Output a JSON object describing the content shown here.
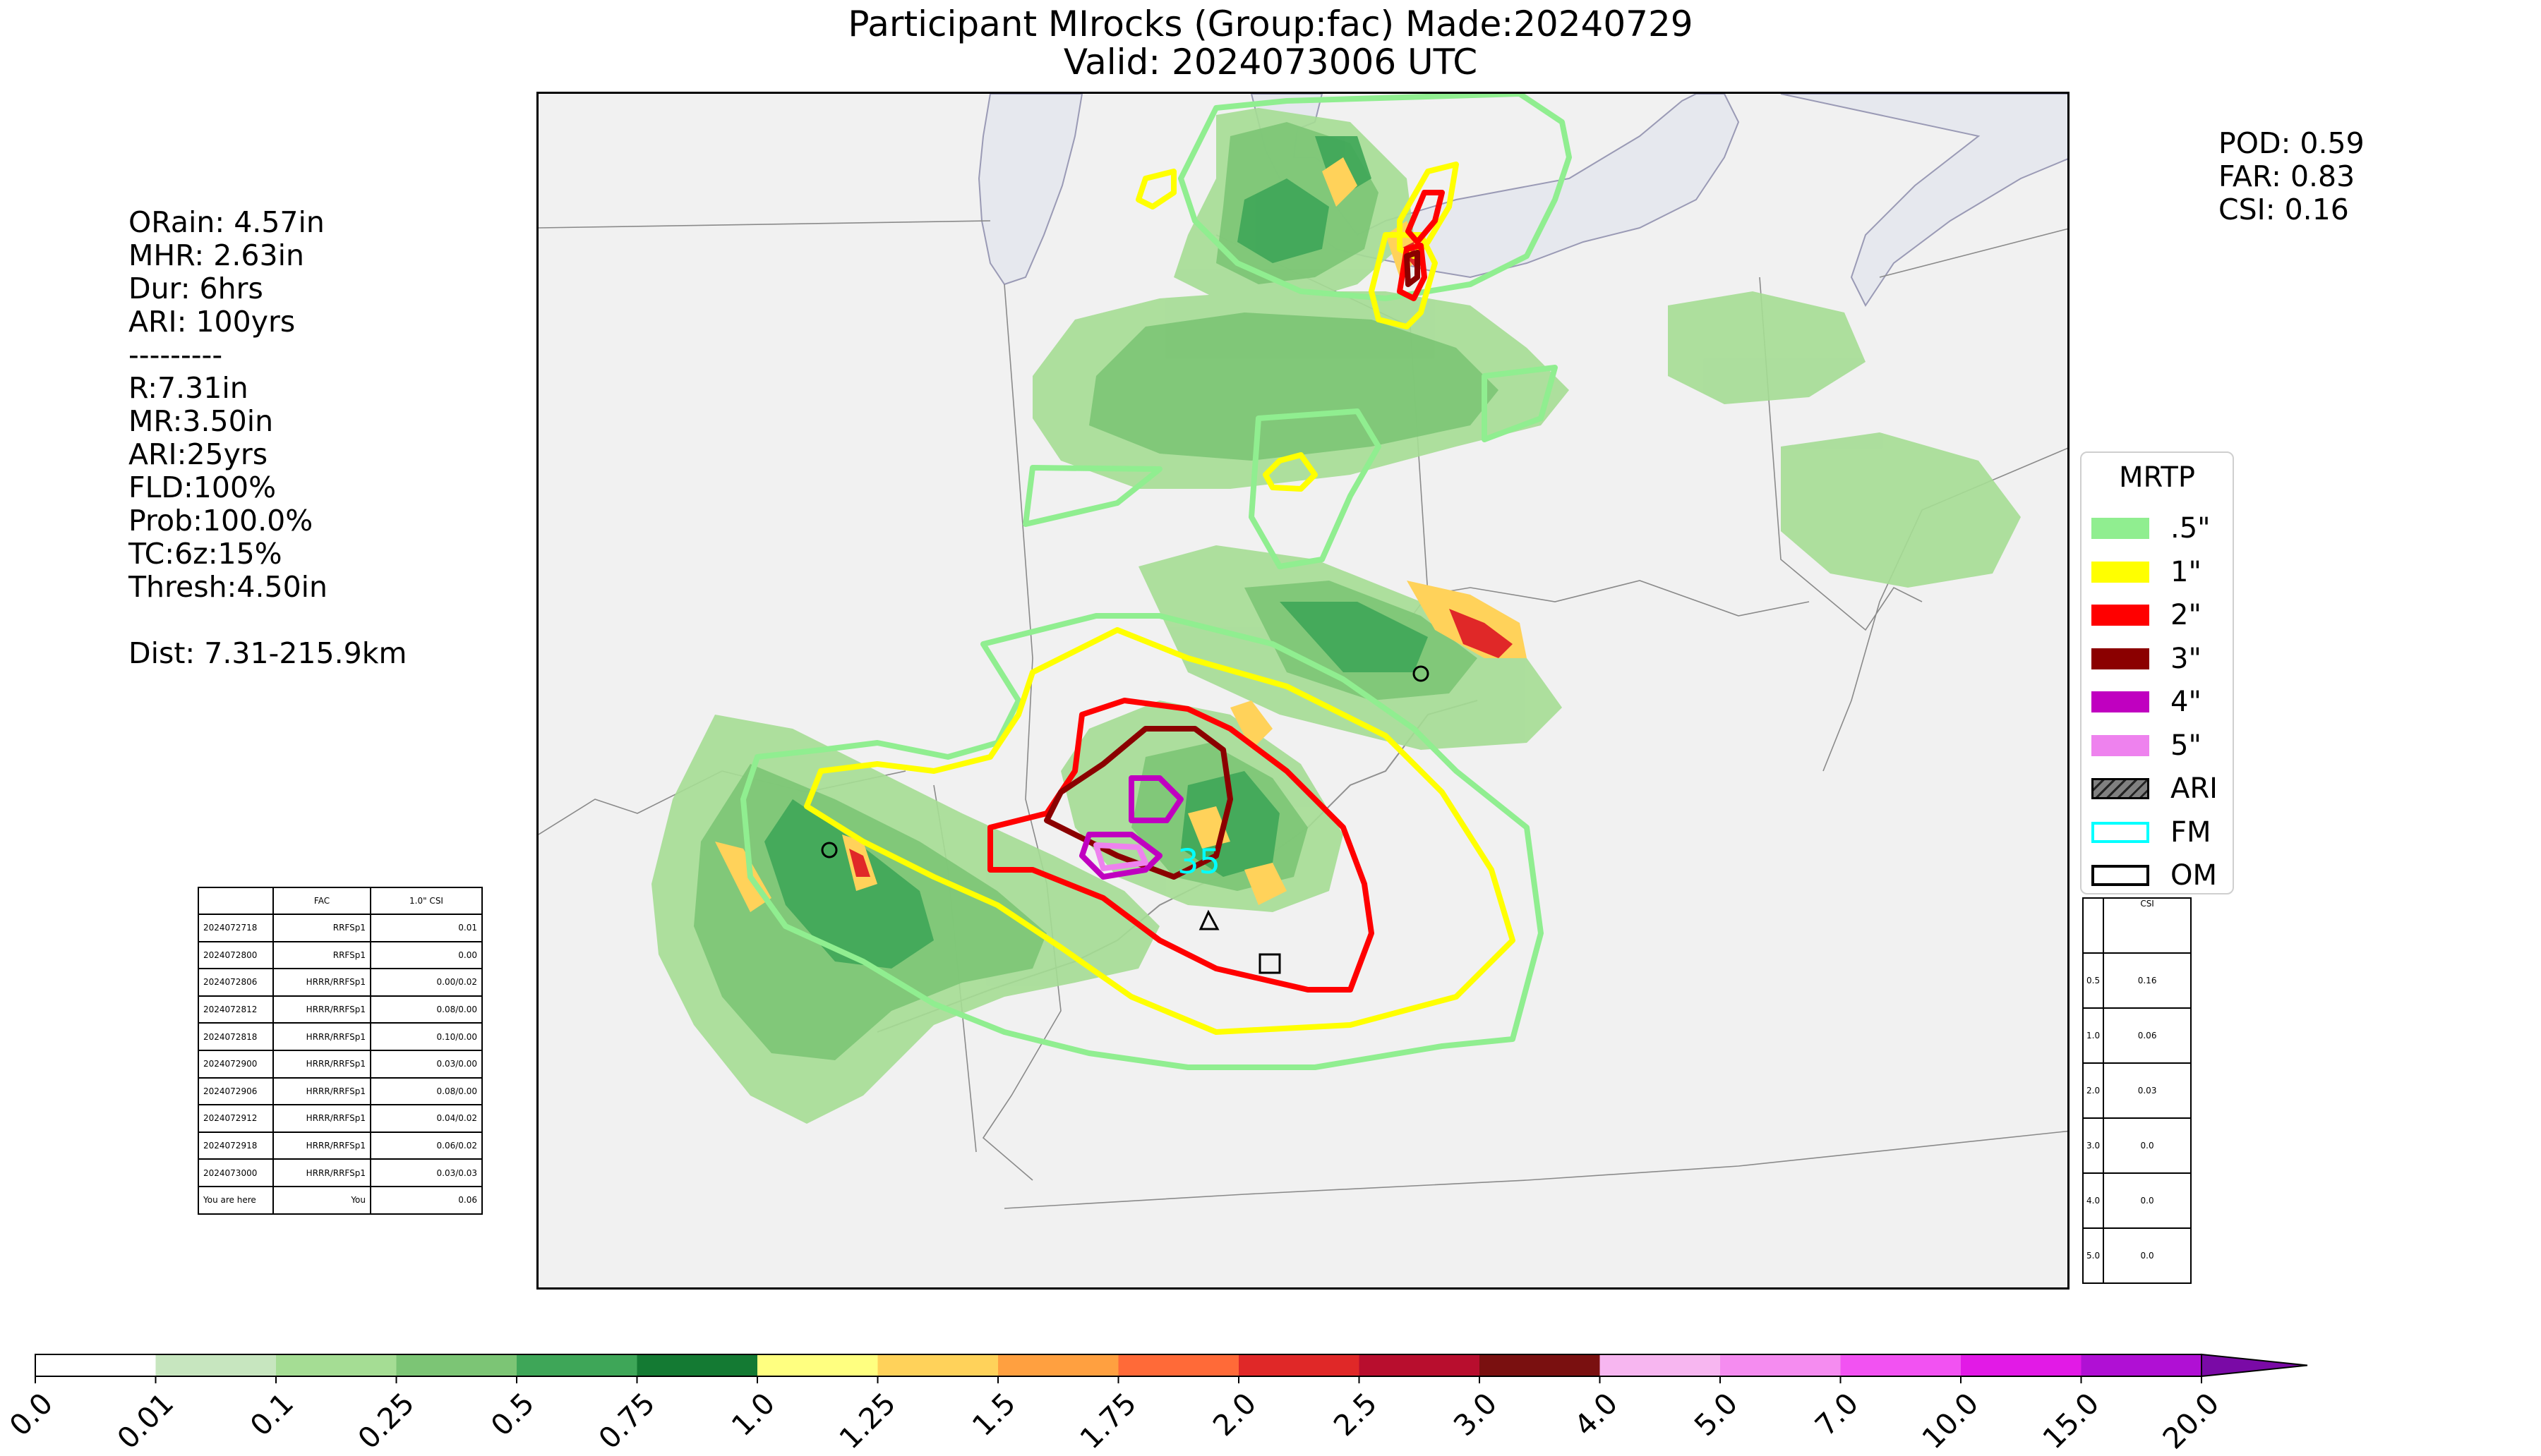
{
  "title": {
    "line1": "Participant MIrocks (Group:fac) Made:20240729",
    "line2": "Valid: 2024073006 UTC"
  },
  "left_stats": [
    "ORain: 4.57in",
    "MHR: 2.63in",
    "Dur: 6hrs",
    "ARI: 100yrs",
    "---------",
    "R:7.31in",
    "MR:3.50in",
    "ARI:25yrs",
    "FLD:100%",
    "Prob:100.0%",
    "TC:6z:15%",
    "Thresh:4.50in",
    "",
    "Dist: 7.31-215.9km"
  ],
  "right_stats": [
    "POD: 0.59",
    "FAR: 0.83",
    "CSI: 0.16"
  ],
  "map": {
    "marker_label": "35",
    "colors": {
      "water": "#e6e8ee",
      "land": "#f1f1f1",
      "contour_05": "#90ee90",
      "contour_1": "#ffff00",
      "contour_2": "#ff0000",
      "contour_3": "#8b0000",
      "contour_4": "#c000c0",
      "contour_5": "#ee82ee"
    }
  },
  "legend": {
    "title": "MRTP",
    "items": [
      {
        "label": ".5\"",
        "color": "#90ee90",
        "style": "fill"
      },
      {
        "label": "1\"",
        "color": "#ffff00",
        "style": "fill"
      },
      {
        "label": "2\"",
        "color": "#ff0000",
        "style": "fill"
      },
      {
        "label": "3\"",
        "color": "#8b0000",
        "style": "fill"
      },
      {
        "label": "4\"",
        "color": "#c000c0",
        "style": "fill"
      },
      {
        "label": "5\"",
        "color": "#ee82ee",
        "style": "fill"
      },
      {
        "label": "ARI",
        "color": "#808080",
        "style": "hatch"
      },
      {
        "label": "FM",
        "color": "#00ffff",
        "style": "outline"
      },
      {
        "label": "OM",
        "color": "#000000",
        "style": "outline"
      }
    ]
  },
  "history_table": {
    "header": [
      "",
      "FAC",
      "1.0\" CSI"
    ],
    "rows": [
      [
        "2024072718",
        "RRFSp1",
        "0.01"
      ],
      [
        "2024072800",
        "RRFSp1",
        "0.00"
      ],
      [
        "2024072806",
        "HRRR/RRFSp1",
        "0.00/0.02"
      ],
      [
        "2024072812",
        "HRRR/RRFSp1",
        "0.08/0.00"
      ],
      [
        "2024072818",
        "HRRR/RRFSp1",
        "0.10/0.00"
      ],
      [
        "2024072900",
        "HRRR/RRFSp1",
        "0.03/0.00"
      ],
      [
        "2024072906",
        "HRRR/RRFSp1",
        "0.08/0.00"
      ],
      [
        "2024072912",
        "HRRR/RRFSp1",
        "0.04/0.02"
      ],
      [
        "2024072918",
        "HRRR/RRFSp1",
        "0.06/0.02"
      ],
      [
        "2024073000",
        "HRRR/RRFSp1",
        "0.03/0.03"
      ],
      [
        "You are here",
        "You",
        "0.06"
      ]
    ]
  },
  "csi_table": {
    "header": [
      "",
      "CSI"
    ],
    "rows": [
      [
        "0.5",
        "0.16"
      ],
      [
        "1.0",
        "0.06"
      ],
      [
        "2.0",
        "0.03"
      ],
      [
        "3.0",
        "0.0"
      ],
      [
        "4.0",
        "0.0"
      ],
      [
        "5.0",
        "0.0"
      ]
    ]
  },
  "colorbar": {
    "ticks": [
      "0.0",
      "0.01",
      "0.1",
      "0.25",
      "0.5",
      "0.75",
      "1.0",
      "1.25",
      "1.5",
      "1.75",
      "2.0",
      "2.5",
      "3.0",
      "4.0",
      "5.0",
      "7.0",
      "10.0",
      "15.0",
      "20.0"
    ],
    "colors": [
      "#ffffff",
      "#c7e6bf",
      "#a5dd94",
      "#7cc575",
      "#3ea658",
      "#147a33",
      "#ffff80",
      "#ffd25a",
      "#ffa040",
      "#ff6a38",
      "#e02828",
      "#b80e2e",
      "#7a1010",
      "#f7b6f0",
      "#f58cf0",
      "#f252f2",
      "#e21ae6",
      "#b010d4"
    ],
    "extend_color": "#7a0aa6"
  }
}
